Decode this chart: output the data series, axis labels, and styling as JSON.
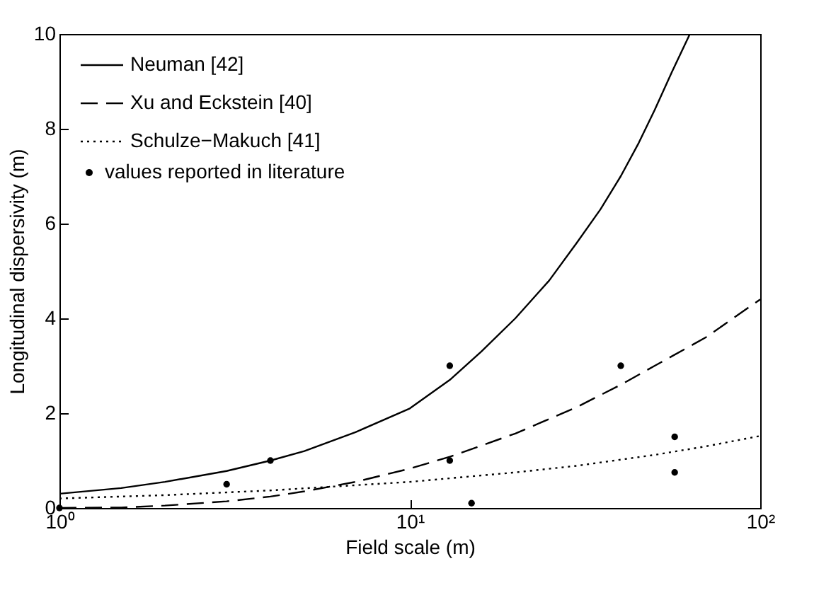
{
  "chart_data": {
    "type": "line",
    "xlabel": "Field scale (m)",
    "ylabel": "Longitudinal dispersivity (m)",
    "log": "x",
    "xlim": [
      1,
      100
    ],
    "xticks": [
      {
        "value": 1,
        "label": "10⁰"
      },
      {
        "value": 10,
        "label": "10¹"
      },
      {
        "value": 100,
        "label": "10²"
      }
    ],
    "ylim": [
      0,
      10
    ],
    "yticks": [
      0,
      2,
      4,
      6,
      8,
      10
    ],
    "grid": false,
    "legend": "top left",
    "marker": "none",
    "series": [
      {
        "name": "Neuman [42]",
        "color": "#000000",
        "line_style": "solid",
        "x": [
          1,
          1.5,
          2,
          3,
          4,
          5,
          7,
          10,
          13,
          16,
          20,
          25,
          30,
          35,
          40,
          45,
          50,
          56,
          63
        ],
        "values": [
          0.3,
          0.42,
          0.55,
          0.78,
          1.0,
          1.2,
          1.6,
          2.1,
          2.7,
          3.3,
          4.0,
          4.8,
          5.6,
          6.3,
          7.0,
          7.7,
          8.4,
          9.2,
          10
        ]
      },
      {
        "name": "Xu and Eckstein [40]",
        "color": "#000000",
        "line_style": "dashed",
        "x": [
          1,
          1.5,
          2,
          3,
          4,
          5,
          7,
          10,
          13,
          20,
          30,
          40,
          50,
          70,
          100
        ],
        "values": [
          0,
          0.01,
          0.05,
          0.14,
          0.24,
          0.35,
          0.55,
          0.83,
          1.08,
          1.57,
          2.13,
          2.6,
          3.0,
          3.6,
          4.4
        ]
      },
      {
        "name": "Schulze−Makuch [41]",
        "color": "#000000",
        "line_style": "dotted",
        "x": [
          1,
          2,
          4,
          10,
          20,
          30,
          50,
          70,
          100
        ],
        "values": [
          0.2,
          0.27,
          0.37,
          0.55,
          0.75,
          0.89,
          1.12,
          1.3,
          1.52
        ]
      },
      {
        "name": "values reported in literature",
        "type": "scatter",
        "color": "#000000",
        "marker": "circle",
        "x": [
          1,
          3,
          4,
          13,
          13,
          15,
          40,
          57,
          57
        ],
        "values": [
          0,
          0.5,
          1,
          3,
          1,
          0.1,
          3,
          1.5,
          0.75
        ]
      }
    ]
  }
}
